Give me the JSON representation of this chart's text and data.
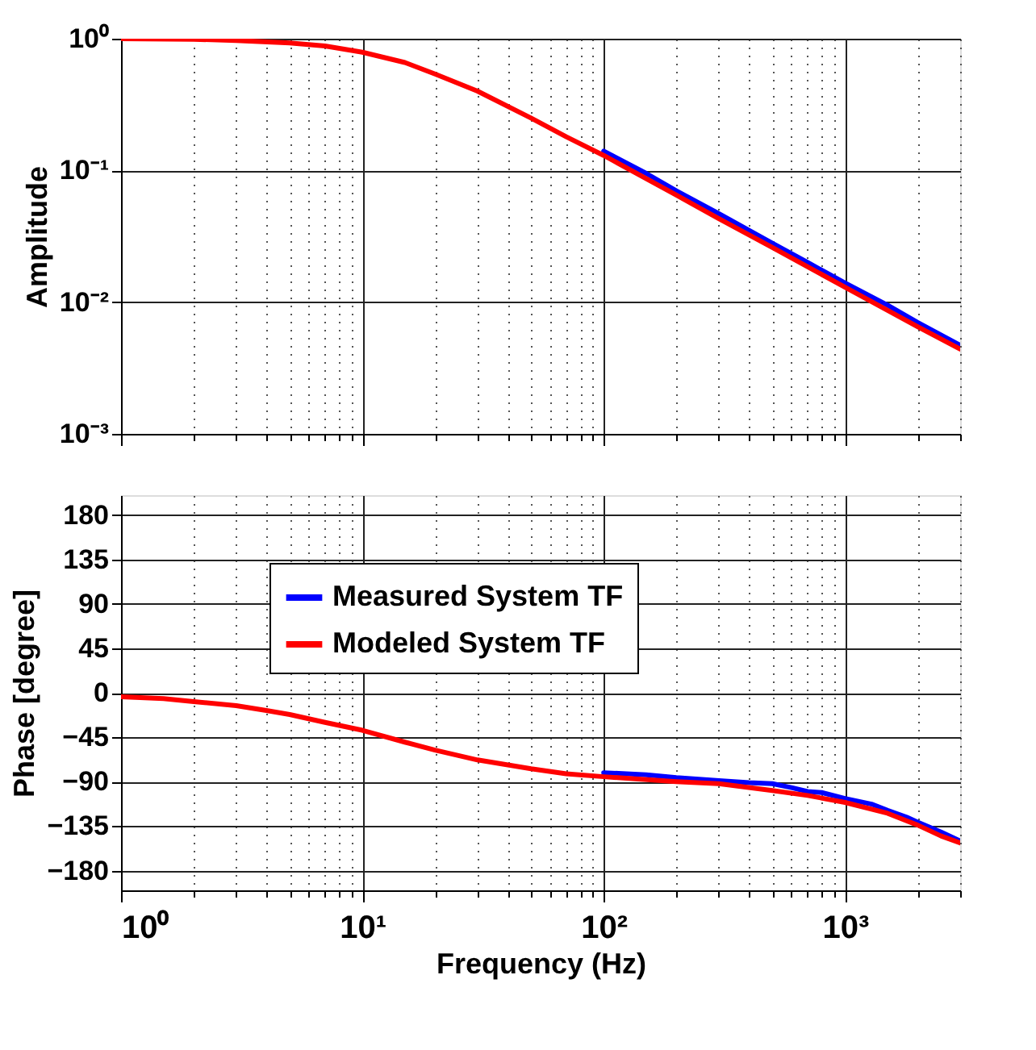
{
  "chart_data": [
    {
      "type": "line",
      "ylabel": "Amplitude",
      "log": "xy",
      "grid": true,
      "legend": false,
      "tick_labels": "y",
      "line_style": "solid",
      "marker": "none",
      "xlim": [
        1,
        3000
      ],
      "ylim": [
        0.001,
        1
      ],
      "xticks": [
        1,
        2,
        3,
        4,
        5,
        6,
        7,
        8,
        9,
        10,
        20,
        30,
        40,
        50,
        60,
        70,
        80,
        90,
        100,
        200,
        300,
        400,
        500,
        600,
        700,
        800,
        900,
        1000,
        2000,
        3000
      ],
      "yticks": [
        {
          "value": 0.001,
          "label": "10⁻³"
        },
        {
          "value": 0.01,
          "label": "10⁻²"
        },
        {
          "value": 0.1,
          "label": "10⁻¹"
        },
        {
          "value": 1,
          "label": "10⁰"
        }
      ],
      "series": [
        {
          "color": "#0000ff",
          "x": [
            100,
            150,
            200,
            300,
            500,
            700,
            1000,
            1500,
            2000,
            3000
          ],
          "values": [
            0.14,
            0.095,
            0.07,
            0.047,
            0.028,
            0.02,
            0.014,
            0.0095,
            0.007,
            0.0047
          ]
        },
        {
          "color": "#ff0000",
          "x": [
            1,
            2,
            3,
            5,
            7,
            10,
            15,
            20,
            30,
            50,
            70,
            100,
            200,
            300,
            500,
            1000,
            2000,
            3000
          ],
          "values": [
            1.0,
            0.99,
            0.97,
            0.93,
            0.88,
            0.79,
            0.66,
            0.54,
            0.4,
            0.25,
            0.18,
            0.13,
            0.065,
            0.043,
            0.026,
            0.013,
            0.0065,
            0.0044
          ]
        }
      ]
    },
    {
      "type": "line",
      "xlabel": "Frequency (Hz)",
      "ylabel": "Phase  [degree]",
      "log": "x",
      "grid": true,
      "legend": "top left",
      "line_style": "solid",
      "marker": "none",
      "xlim": [
        1,
        3000
      ],
      "ylim": [
        -200,
        200
      ],
      "xticks": [
        {
          "value": 1,
          "label": "10⁰"
        },
        {
          "value": 2,
          "label": null
        },
        {
          "value": 3,
          "label": null
        },
        {
          "value": 4,
          "label": null
        },
        {
          "value": 5,
          "label": null
        },
        {
          "value": 6,
          "label": null
        },
        {
          "value": 7,
          "label": null
        },
        {
          "value": 8,
          "label": null
        },
        {
          "value": 9,
          "label": null
        },
        {
          "value": 10,
          "label": "10¹"
        },
        {
          "value": 20,
          "label": null
        },
        {
          "value": 30,
          "label": null
        },
        {
          "value": 40,
          "label": null
        },
        {
          "value": 50,
          "label": null
        },
        {
          "value": 60,
          "label": null
        },
        {
          "value": 70,
          "label": null
        },
        {
          "value": 80,
          "label": null
        },
        {
          "value": 90,
          "label": null
        },
        {
          "value": 100,
          "label": "10²"
        },
        {
          "value": 200,
          "label": null
        },
        {
          "value": 300,
          "label": null
        },
        {
          "value": 400,
          "label": null
        },
        {
          "value": 500,
          "label": null
        },
        {
          "value": 600,
          "label": null
        },
        {
          "value": 700,
          "label": null
        },
        {
          "value": 800,
          "label": null
        },
        {
          "value": 900,
          "label": null
        },
        {
          "value": 1000,
          "label": "10³"
        },
        {
          "value": 2000,
          "label": null
        },
        {
          "value": 3000,
          "label": null
        }
      ],
      "yticks": [
        -180,
        -135,
        -90,
        -45,
        0,
        45,
        90,
        135,
        180
      ],
      "series": [
        {
          "name": "Measured System TF",
          "color": "#0000ff",
          "x": [
            100,
            150,
            200,
            300,
            400,
            500,
            600,
            700,
            800,
            1000,
            1300,
            1500,
            1800,
            2000,
            2500,
            3000
          ],
          "values": [
            -81,
            -83,
            -86,
            -89,
            -91,
            -92,
            -96,
            -100,
            -101,
            -107,
            -113,
            -119,
            -126,
            -131,
            -141,
            -150
          ]
        },
        {
          "name": "Modeled System TF",
          "color": "#ff0000",
          "x": [
            1,
            1.5,
            2,
            3,
            4,
            5,
            7,
            10,
            15,
            20,
            30,
            50,
            70,
            100,
            200,
            300,
            500,
            700,
            1000,
            1500,
            2000,
            2500,
            3000
          ],
          "values": [
            -4,
            -6,
            -9,
            -13,
            -18,
            -22,
            -30,
            -38,
            -50,
            -58,
            -68,
            -77,
            -82,
            -85,
            -90,
            -92,
            -99,
            -104,
            -111,
            -122,
            -134,
            -145,
            -152
          ]
        }
      ]
    }
  ]
}
